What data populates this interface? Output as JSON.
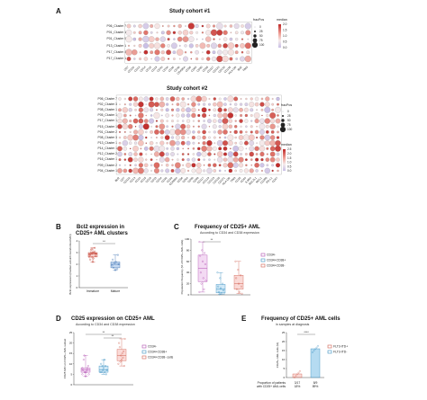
{
  "panelA": {
    "letter": "A",
    "cohort1": {
      "title": "Study cohort #1",
      "rows": [
        "P06_Cluster 7",
        "P01_Cluster 1",
        "P01_Cluster 5",
        "P13_Cluster 1",
        "P17_Cluster 4",
        "P17_Cluster 1"
      ],
      "columns": [
        "CD7",
        "CD11b",
        "CD13",
        "CD14",
        "CD15",
        "CD19",
        "CD33",
        "CD34",
        "CD36",
        "CD38",
        "CD45RA",
        "CD56",
        "CD64",
        "CD90",
        "CD99",
        "CD117",
        "CD123",
        "CD133",
        "CD135",
        "HLA-DR",
        "Bcl2",
        "TIM3"
      ]
    },
    "cohort2": {
      "title": "Study cohort #2",
      "rows": [
        "P06_Cluster 7",
        "P02_Cluster 3",
        "P08_Cluster 1",
        "P05_Cluster 1",
        "P17_Cluster 1",
        "P15_Cluster 1",
        "P01_Cluster 2",
        "P08_Cluster 3",
        "P13_Cluster 1",
        "P14_Cluster 1",
        "P12_Cluster 2",
        "P16_Cluster 1",
        "P09_Cluster 2",
        "P04_Cluster 1"
      ],
      "columns": [
        "Bcl2",
        "CD7",
        "CD11b",
        "CD13",
        "CD14",
        "CD15",
        "CD19",
        "CD33",
        "CD34",
        "CD36",
        "CD38",
        "CD45RA",
        "CD56",
        "CD64",
        "CD90",
        "CD99",
        "CD117",
        "CD123",
        "CD133",
        "CD135",
        "CD371",
        "HLA-DR",
        "TIM3",
        "CD25",
        "CD44",
        "IL3RA",
        "BCL2L1",
        "MCL1",
        "CD200",
        "PD-L1",
        "CD47"
      ]
    },
    "legend_size_title": "fracPos",
    "legend_size_values": [
      "0",
      "25",
      "50",
      "75",
      "100"
    ],
    "legend_color_title": "median",
    "legend_color_values1": [
      "2.0",
      "1.5",
      "1.0",
      "0.5",
      "0.0"
    ],
    "legend_color_values2": [
      "2.5",
      "2.0",
      "1.5",
      "1.0",
      "0.5",
      "0.0"
    ]
  },
  "panelB": {
    "letter": "B",
    "title": "Bcl2 expression in",
    "title2": "CD25+ AML clusters",
    "ylabel": "Bcl2 expression (median arcsinh transformed MFI)",
    "pvalue": "**",
    "categories": [
      "Immature",
      "Mature"
    ]
  },
  "panelC": {
    "letter": "C",
    "title": "Frequency of CD25+ AML",
    "subtitle": "According to CD34 and CD38 expression",
    "ylabel": "Population frequency (% of CD25+ AML cells)",
    "pvalue": "**",
    "legend": [
      "CD34-",
      "CD34+CD38+",
      "CD34+CD38-"
    ]
  },
  "panelD": {
    "letter": "D",
    "title": "CD25 expression on CD25+ AML",
    "subtitle": "According to CD34 and CD38 expression",
    "ylabel": "CD25 MFI on CD25+ AML subset",
    "pvalue1": "**",
    "pvalue2": "**",
    "legend": [
      "CD34-",
      "CD34+CD38+",
      "CD34+CD38- cells"
    ]
  },
  "panelE": {
    "letter": "E",
    "title": "Frequency of CD25+ AML cells",
    "subtitle": "in samples at diagnosis",
    "ylabel": "CD25+ AML cells (%)",
    "pvalue": "****",
    "legend": [
      "FLT3-ITD+",
      "FLT3-ITD-"
    ],
    "row_label1": "Proportion of patients",
    "row_label2": "with CD25+ AML cells",
    "counts": [
      "3/17",
      "8/9"
    ],
    "percents": [
      "18%",
      "89%"
    ]
  },
  "chart_data": [
    {
      "type": "box",
      "panel": "B",
      "categories": [
        "Immature",
        "Mature"
      ],
      "series": [
        {
          "values": [
            2.6,
            2.9,
            3.1,
            2.8,
            3.0,
            2.7,
            3.2,
            2.5,
            2.9,
            3.3,
            3.0,
            2.8,
            2.6,
            3.4,
            2.4,
            2.2,
            2.9,
            3.0
          ]
        },
        {
          "values": [
            1.9,
            2.1,
            1.6,
            2.4,
            1.5,
            2.8,
            1.7,
            2.2,
            2.0
          ]
        }
      ],
      "ylim": [
        0,
        4
      ]
    },
    {
      "type": "box",
      "panel": "C",
      "categories": [
        "CD34-",
        "CD34+CD38+",
        "CD34+CD38-"
      ],
      "series": [
        {
          "values": [
            95,
            80,
            75,
            70,
            60,
            55,
            40,
            30,
            25,
            20,
            10,
            5
          ]
        },
        {
          "values": [
            40,
            30,
            20,
            15,
            12,
            8,
            5,
            3,
            2,
            1
          ]
        },
        {
          "values": [
            60,
            45,
            35,
            30,
            20,
            15,
            10,
            5,
            2
          ]
        }
      ],
      "ylim": [
        0,
        100
      ]
    },
    {
      "type": "box",
      "panel": "D",
      "categories": [
        "CD34-",
        "CD34+CD38+",
        "CD34+CD38- cells"
      ],
      "series": [
        {
          "values": [
            5,
            6,
            8,
            7,
            4,
            9,
            12,
            6,
            5,
            14,
            7,
            8,
            6
          ]
        },
        {
          "values": [
            6,
            7,
            9,
            10,
            8,
            5,
            6,
            12,
            7,
            9,
            6
          ]
        },
        {
          "values": [
            10,
            14,
            16,
            20,
            12,
            9,
            18,
            15,
            22,
            11,
            13
          ]
        }
      ],
      "ylim": [
        0,
        25
      ]
    },
    {
      "type": "bar",
      "panel": "E",
      "categories": [
        "FLT3-ITD+",
        "FLT3-ITD-"
      ],
      "values": [
        2,
        16
      ],
      "ylim": [
        0,
        25
      ]
    }
  ]
}
